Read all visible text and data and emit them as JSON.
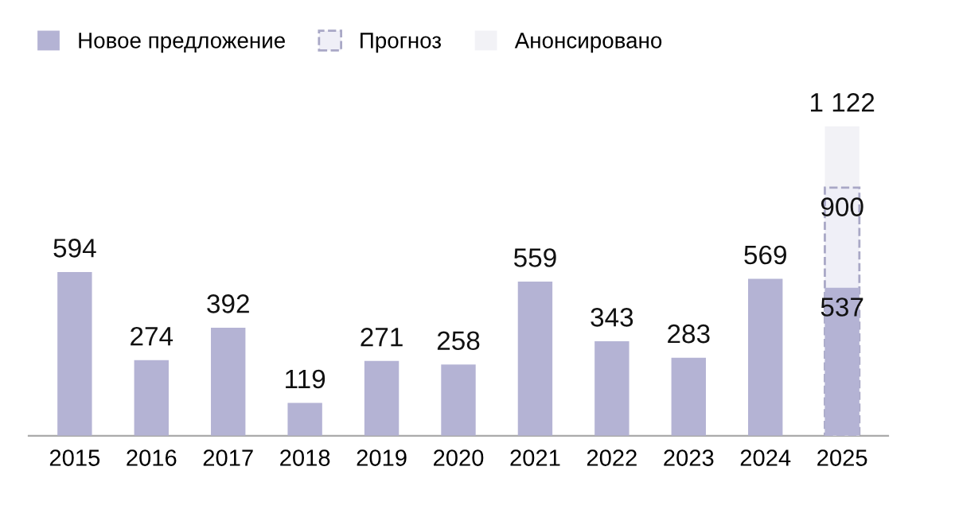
{
  "chart_data": {
    "type": "bar",
    "categories": [
      "2015",
      "2016",
      "2017",
      "2018",
      "2019",
      "2020",
      "2021",
      "2022",
      "2023",
      "2024",
      "2025"
    ],
    "series": [
      {
        "name": "Новое предложение",
        "color": "#b4b3d4",
        "values": [
          594,
          274,
          392,
          119,
          271,
          258,
          559,
          343,
          283,
          569,
          537
        ],
        "value_labels": [
          "594",
          "274",
          "392",
          "119",
          "271",
          "258",
          "559",
          "343",
          "283",
          "569",
          "537"
        ]
      },
      {
        "name": "Прогноз",
        "color": "#efeff7",
        "line_style": "dashed",
        "values": [
          null,
          null,
          null,
          null,
          null,
          null,
          null,
          null,
          null,
          null,
          900
        ],
        "value_labels": [
          null,
          null,
          null,
          null,
          null,
          null,
          null,
          null,
          null,
          null,
          "900"
        ]
      },
      {
        "name": "Анонсировано",
        "color": "#f2f2f6",
        "values": [
          null,
          null,
          null,
          null,
          null,
          null,
          null,
          null,
          null,
          null,
          1122
        ],
        "value_labels": [
          null,
          null,
          null,
          null,
          null,
          null,
          null,
          null,
          null,
          null,
          "1 122"
        ]
      }
    ],
    "legend": "top left",
    "grid": false,
    "tick_labels": "x"
  }
}
